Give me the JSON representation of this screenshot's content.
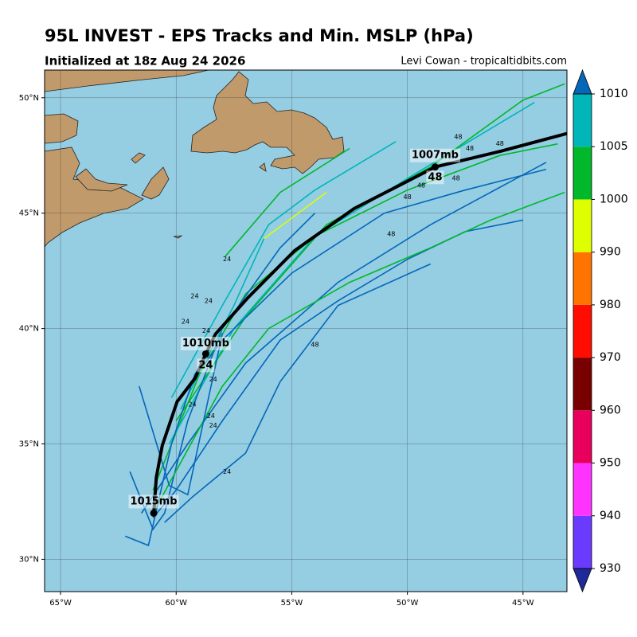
{
  "chart_data": {
    "type": "track-map",
    "title": "95L INVEST - EPS Tracks and Min. MSLP (hPa)",
    "subtitle": "Initialized at 18z Aug 24 2026",
    "credit": "Levi Cowan - tropicaltidbits.com",
    "xlim": [
      -65.69,
      -43.1
    ],
    "ylim": [
      28.6,
      51.2
    ],
    "xticks": [
      {
        "value": -65,
        "label": "65°W"
      },
      {
        "value": -60,
        "label": "60°W"
      },
      {
        "value": -55,
        "label": "55°W"
      },
      {
        "value": -50,
        "label": "50°W"
      },
      {
        "value": -45,
        "label": "45°W"
      }
    ],
    "yticks": [
      {
        "value": 30,
        "label": "30°N"
      },
      {
        "value": 35,
        "label": "35°N"
      },
      {
        "value": 40,
        "label": "40°N"
      },
      {
        "value": 45,
        "label": "45°N"
      },
      {
        "value": 50,
        "label": "50°N"
      }
    ],
    "grid": true,
    "colorbar": {
      "levels": [
        930,
        940,
        950,
        960,
        970,
        980,
        990,
        1000,
        1005,
        1010
      ],
      "colors": [
        "#6a3aff",
        "#ff33ff",
        "#e8005c",
        "#780000",
        "#ff0d00",
        "#ff7300",
        "#ddff00",
        "#00b82a",
        "#00b6b8"
      ],
      "under_color": "#1f2a9a",
      "over_color": "#0467b8"
    },
    "mean_track": {
      "color": "#000000",
      "lon": [
        -60.97,
        -60.86,
        -60.6,
        -59.96,
        -59.17,
        -58.72,
        -58.3,
        -56.93,
        -54.87,
        -52.3,
        -48.8,
        -45.9,
        -43.1
      ],
      "lat": [
        32.0,
        33.55,
        34.93,
        36.83,
        37.86,
        38.9,
        39.76,
        41.3,
        43.38,
        45.2,
        47.0,
        47.7,
        48.45
      ]
    },
    "tracks": [
      {
        "color": "#00b82a",
        "lon": [
          -57.9,
          -55.5,
          -52.5
        ],
        "lat": [
          43.1,
          45.9,
          47.8
        ]
      },
      {
        "color": "#00b6b8",
        "lon": [
          -60.2,
          -58,
          -56,
          -54,
          -50.5
        ],
        "lat": [
          37,
          41,
          44.5,
          46,
          48.1
        ]
      },
      {
        "color": "#0467b8",
        "lon": [
          -61,
          -60,
          -58,
          -55.5,
          -53,
          -50,
          -47.5,
          -45
        ],
        "lat": [
          31.8,
          33,
          36,
          39.5,
          41.2,
          43,
          44.2,
          44.7
        ]
      },
      {
        "color": "#0467b8",
        "lon": [
          -61.5,
          -59.5,
          -57,
          -53,
          -49,
          -44
        ],
        "lat": [
          32,
          35,
          38.5,
          42,
          44.5,
          47.2
        ]
      },
      {
        "color": "#0467b8",
        "lon": [
          -60.5,
          -59.3,
          -57,
          -55.5,
          -53,
          -49
        ],
        "lat": [
          31.6,
          32.7,
          34.6,
          37.7,
          41,
          42.8
        ]
      },
      {
        "color": "#00b82a",
        "lon": [
          -61,
          -59,
          -57,
          -54,
          -50,
          -46,
          -43.5
        ],
        "lat": [
          33,
          38,
          41.5,
          44,
          46,
          47.5,
          48
        ]
      },
      {
        "color": "#00b6b8",
        "lon": [
          -60.3,
          -57.5,
          -54,
          -50,
          -44.5
        ],
        "lat": [
          35,
          40,
          44,
          46.5,
          49.8
        ]
      },
      {
        "color": "#00b82a",
        "lon": [
          -60,
          -57,
          -53.5,
          -49,
          -45,
          -43.2
        ],
        "lat": [
          36,
          40.5,
          44.5,
          47,
          49.9,
          50.6
        ]
      },
      {
        "color": "#0467b8",
        "lon": [
          -62,
          -61,
          -60.5,
          -59.5,
          -58,
          -55.5,
          -54
        ],
        "lat": [
          33.8,
          31.3,
          32,
          36,
          40,
          43.5,
          45
        ]
      },
      {
        "color": "#0467b8",
        "lon": [
          -59.5,
          -58,
          -55,
          -51,
          -47.5,
          -44
        ],
        "lat": [
          37.5,
          39.5,
          42.4,
          45,
          46,
          46.9
        ]
      },
      {
        "color": "#00b82a",
        "lon": [
          -61,
          -58,
          -56,
          -52.5,
          -49,
          -46.4,
          -43.2
        ],
        "lat": [
          32,
          37.5,
          40,
          42,
          43.5,
          44.7,
          45.9
        ]
      },
      {
        "color": "#00b6b8",
        "lon": [
          -59.8,
          -57.5,
          -56.2
        ],
        "lat": [
          36.5,
          41,
          43.9
        ]
      },
      {
        "color": "#ddff00",
        "lon": [
          -56.2,
          -53.5
        ],
        "lat": [
          43.9,
          45.9
        ]
      },
      {
        "color": "#0467b8",
        "lon": [
          -62.2,
          -61.2,
          -60.2,
          -59.2,
          -58.8
        ],
        "lat": [
          31.0,
          30.6,
          35,
          38,
          38.6
        ]
      },
      {
        "color": "#0467b8",
        "lon": [
          -61.6,
          -60.3,
          -59.5,
          -58
        ],
        "lat": [
          37.5,
          33.2,
          32.8,
          39.8
        ]
      }
    ],
    "annotations": [
      {
        "text": "1015mb",
        "lon": -60.97,
        "lat": 32.5
      },
      {
        "text": "1010mb",
        "lon": -58.72,
        "lat": 39.35
      },
      {
        "text": "24",
        "lon": -58.72,
        "lat": 38.4
      },
      {
        "text": "1007mb",
        "lon": -48.8,
        "lat": 47.5
      },
      {
        "text": "48",
        "lon": -48.8,
        "lat": 46.55
      }
    ],
    "small_labels": [
      {
        "text": "24",
        "lon": -57.8,
        "lat": 43.0
      },
      {
        "text": "24",
        "lon": -59.2,
        "lat": 41.4
      },
      {
        "text": "24",
        "lon": -58.6,
        "lat": 41.2
      },
      {
        "text": "24",
        "lon": -59.6,
        "lat": 40.3
      },
      {
        "text": "24",
        "lon": -58.7,
        "lat": 39.9
      },
      {
        "text": "24",
        "lon": -58.4,
        "lat": 37.8
      },
      {
        "text": "24",
        "lon": -59.3,
        "lat": 36.7
      },
      {
        "text": "24",
        "lon": -58.5,
        "lat": 36.2
      },
      {
        "text": "24",
        "lon": -58.4,
        "lat": 35.8
      },
      {
        "text": "24",
        "lon": -57.8,
        "lat": 33.8
      },
      {
        "text": "48",
        "lon": -54.0,
        "lat": 39.3
      },
      {
        "text": "48",
        "lon": -50.7,
        "lat": 44.1
      },
      {
        "text": "48",
        "lon": -50.0,
        "lat": 45.7
      },
      {
        "text": "48",
        "lon": -49.4,
        "lat": 46.2
      },
      {
        "text": "48",
        "lon": -47.9,
        "lat": 46.5
      },
      {
        "text": "48",
        "lon": -47.8,
        "lat": 48.3
      },
      {
        "text": "48",
        "lon": -46.0,
        "lat": 48.0
      },
      {
        "text": "48",
        "lon": -47.3,
        "lat": 47.8
      }
    ]
  }
}
